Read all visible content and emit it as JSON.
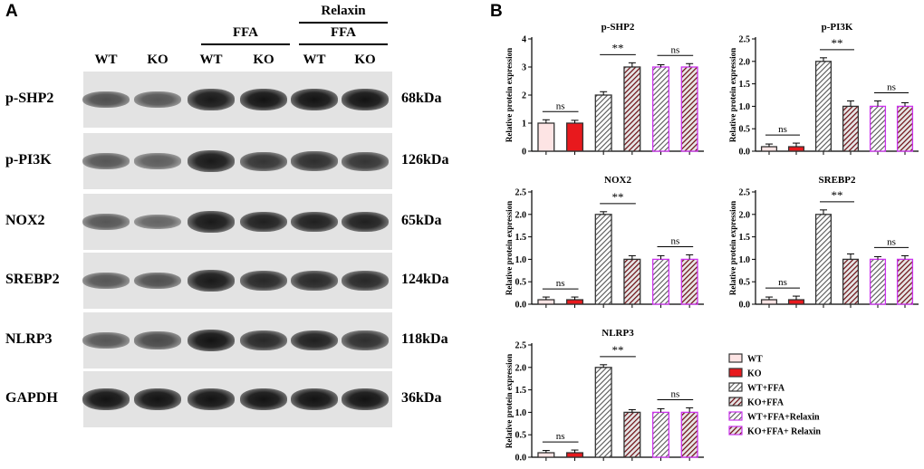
{
  "panel_a": {
    "letter": "A",
    "header": {
      "relaxin_label": "Relaxin",
      "ffa_label_1": "FFA",
      "ffa_label_2": "FFA",
      "lanes": [
        "WT",
        "KO",
        "WT",
        "KO",
        "WT",
        "KO"
      ]
    },
    "blots": [
      {
        "protein": "p-SHP2",
        "kda": "68kDa",
        "band_darkness": [
          0.55,
          0.5,
          0.95,
          1.0,
          1.0,
          1.0
        ]
      },
      {
        "protein": "p-PI3K",
        "kda": "126kDa",
        "band_darkness": [
          0.5,
          0.45,
          0.95,
          0.75,
          0.8,
          0.75
        ]
      },
      {
        "protein": "NOX2",
        "kda": "65kDa",
        "band_darkness": [
          0.5,
          0.4,
          0.95,
          0.9,
          0.9,
          0.9
        ]
      },
      {
        "protein": "SREBP2",
        "kda": "124kDa",
        "band_darkness": [
          0.5,
          0.55,
          0.95,
          0.85,
          0.85,
          0.85
        ]
      },
      {
        "protein": "NLRP3",
        "kda": "118kDa",
        "band_darkness": [
          0.5,
          0.6,
          1.0,
          0.85,
          0.9,
          0.8
        ]
      },
      {
        "protein": "GAPDH",
        "kda": "36kDa",
        "band_darkness": [
          1.0,
          1.0,
          1.0,
          1.0,
          1.0,
          1.0
        ]
      }
    ]
  },
  "panel_b": {
    "letter": "B",
    "ylabel": "Relative protein expression",
    "legend": [
      {
        "label": "WT",
        "fill": "#fde4e4",
        "stroke": "#333333",
        "pattern": "none"
      },
      {
        "label": "KO",
        "fill": "#e8191d",
        "stroke": "#333333",
        "pattern": "none"
      },
      {
        "label": "WT+FFA",
        "fill": "#bdbdbd",
        "stroke": "#333333",
        "pattern": "hatch"
      },
      {
        "label": "KO+FFA",
        "fill": "#a0141c",
        "stroke": "#333333",
        "pattern": "hatch"
      },
      {
        "label": "WT+FFA+Relaxin",
        "fill": "#c8c8c8",
        "stroke": "#cc33ee",
        "pattern": "hatch"
      },
      {
        "label": "KO+FFA+ Relaxin",
        "fill": "#b5161e",
        "stroke": "#cc33ee",
        "pattern": "hatch"
      }
    ],
    "significance": {
      "ns": "ns",
      "double_star": "**"
    }
  },
  "chart_data": [
    {
      "type": "bar",
      "title": "p-SHP2",
      "ylabel": "Relative protein expression",
      "categories": [
        "WT",
        "KO",
        "WT+FFA",
        "KO+FFA",
        "WT+FFA+Relaxin",
        "KO+FFA+ Relaxin"
      ],
      "values": [
        1.0,
        1.0,
        2.0,
        3.0,
        3.0,
        3.0
      ],
      "errors": [
        0.12,
        0.1,
        0.12,
        0.15,
        0.08,
        0.12
      ],
      "ylim": [
        0,
        4
      ],
      "yticks": [
        0,
        1,
        2,
        3,
        4
      ],
      "ytick_labels": [
        "0",
        "1",
        "2",
        "3",
        "4"
      ],
      "annotations": [
        {
          "pair": [
            0,
            1
          ],
          "text": "ns"
        },
        {
          "pair": [
            2,
            3
          ],
          "text": "**"
        },
        {
          "pair": [
            4,
            5
          ],
          "text": "ns"
        }
      ]
    },
    {
      "type": "bar",
      "title": "p-PI3K",
      "ylabel": "Relative protein expression",
      "categories": [
        "WT",
        "KO",
        "WT+FFA",
        "KO+FFA",
        "WT+FFA+Relaxin",
        "KO+FFA+ Relaxin"
      ],
      "values": [
        0.1,
        0.1,
        2.0,
        1.0,
        1.0,
        1.0
      ],
      "errors": [
        0.06,
        0.08,
        0.08,
        0.12,
        0.12,
        0.08
      ],
      "ylim": [
        0,
        2.5
      ],
      "yticks": [
        0,
        0.5,
        1.0,
        1.5,
        2.0,
        2.5
      ],
      "ytick_labels": [
        "0.0",
        "0.5",
        "1.0",
        "1.5",
        "2.0",
        "2.5"
      ],
      "annotations": [
        {
          "pair": [
            0,
            1
          ],
          "text": "ns"
        },
        {
          "pair": [
            2,
            3
          ],
          "text": "**"
        },
        {
          "pair": [
            4,
            5
          ],
          "text": "ns"
        }
      ]
    },
    {
      "type": "bar",
      "title": "NOX2",
      "ylabel": "Relative protein expression",
      "categories": [
        "WT",
        "KO",
        "WT+FFA",
        "KO+FFA",
        "WT+FFA+Relaxin",
        "KO+FFA+ Relaxin"
      ],
      "values": [
        0.1,
        0.1,
        2.0,
        1.0,
        1.0,
        1.0
      ],
      "errors": [
        0.06,
        0.06,
        0.06,
        0.08,
        0.08,
        0.1
      ],
      "ylim": [
        0,
        2.5
      ],
      "yticks": [
        0,
        0.5,
        1.0,
        1.5,
        2.0,
        2.5
      ],
      "ytick_labels": [
        "0.0",
        "0.5",
        "1.0",
        "1.5",
        "2.0",
        "2.5"
      ],
      "annotations": [
        {
          "pair": [
            0,
            1
          ],
          "text": "ns"
        },
        {
          "pair": [
            2,
            3
          ],
          "text": "**"
        },
        {
          "pair": [
            4,
            5
          ],
          "text": "ns"
        }
      ]
    },
    {
      "type": "bar",
      "title": "SREBP2",
      "ylabel": "Relative protein expression",
      "categories": [
        "WT",
        "KO",
        "WT+FFA",
        "KO+FFA",
        "WT+FFA+Relaxin",
        "KO+FFA+ Relaxin"
      ],
      "values": [
        0.1,
        0.1,
        2.0,
        1.0,
        1.0,
        1.0
      ],
      "errors": [
        0.06,
        0.08,
        0.1,
        0.12,
        0.06,
        0.08
      ],
      "ylim": [
        0,
        2.5
      ],
      "yticks": [
        0,
        0.5,
        1.0,
        1.5,
        2.0,
        2.5
      ],
      "ytick_labels": [
        "0.0",
        "0.5",
        "1.0",
        "1.5",
        "2.0",
        "2.5"
      ],
      "annotations": [
        {
          "pair": [
            0,
            1
          ],
          "text": "ns"
        },
        {
          "pair": [
            2,
            3
          ],
          "text": "**"
        },
        {
          "pair": [
            4,
            5
          ],
          "text": "ns"
        }
      ]
    },
    {
      "type": "bar",
      "title": "NLRP3",
      "ylabel": "Relative protein expression",
      "categories": [
        "WT",
        "KO",
        "WT+FFA",
        "KO+FFA",
        "WT+FFA+Relaxin",
        "KO+FFA+ Relaxin"
      ],
      "values": [
        0.1,
        0.1,
        2.0,
        1.0,
        1.0,
        1.0
      ],
      "errors": [
        0.05,
        0.06,
        0.06,
        0.06,
        0.08,
        0.1
      ],
      "ylim": [
        0,
        2.5
      ],
      "yticks": [
        0,
        0.5,
        1.0,
        1.5,
        2.0,
        2.5
      ],
      "ytick_labels": [
        "0.0",
        "0.5",
        "1.0",
        "1.5",
        "2.0",
        "2.5"
      ],
      "annotations": [
        {
          "pair": [
            0,
            1
          ],
          "text": "ns"
        },
        {
          "pair": [
            2,
            3
          ],
          "text": "**"
        },
        {
          "pair": [
            4,
            5
          ],
          "text": "ns"
        }
      ]
    }
  ]
}
